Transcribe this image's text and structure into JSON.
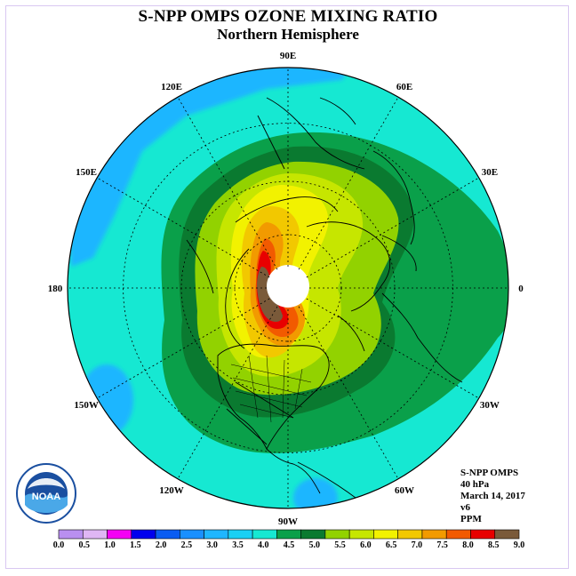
{
  "title": "S-NPP OMPS OZONE MIXING RATIO",
  "subtitle": "Northern Hemisphere",
  "longitude_labels": [
    {
      "text": "90E",
      "lon": 90
    },
    {
      "text": "120E",
      "lon": 120
    },
    {
      "text": "60E",
      "lon": 60
    },
    {
      "text": "150E",
      "lon": 150
    },
    {
      "text": "30E",
      "lon": 30
    },
    {
      "text": "180",
      "lon": 180
    },
    {
      "text": "0",
      "lon": 0
    },
    {
      "text": "150W",
      "lon": -150
    },
    {
      "text": "30W",
      "lon": -30
    },
    {
      "text": "120W",
      "lon": -120
    },
    {
      "text": "60W",
      "lon": -60
    },
    {
      "text": "90W",
      "lon": -90
    }
  ],
  "info": {
    "instrument": "S-NPP OMPS",
    "level": "40 hPa",
    "date": "March 14, 2017",
    "version": "v6",
    "units": "PPM"
  },
  "colorbar": {
    "ticks": [
      "0.0",
      "0.5",
      "1.0",
      "1.5",
      "2.0",
      "2.5",
      "3.0",
      "3.5",
      "4.0",
      "4.5",
      "5.0",
      "5.5",
      "6.0",
      "6.5",
      "7.0",
      "7.5",
      "8.0",
      "8.5",
      "9.0"
    ],
    "colors": [
      "#b98ff0",
      "#dfb6f4",
      "#f400f4",
      "#0000ee",
      "#0a5cf2",
      "#1a90ff",
      "#1fb6ff",
      "#1ad0f4",
      "#16e8d2",
      "#0aa04a",
      "#0a7a30",
      "#92d200",
      "#c6e600",
      "#f2f200",
      "#f2c800",
      "#f29a00",
      "#f25a00",
      "#e80000",
      "#7a5a3a"
    ]
  },
  "logo": {
    "text": "NOAA"
  }
}
